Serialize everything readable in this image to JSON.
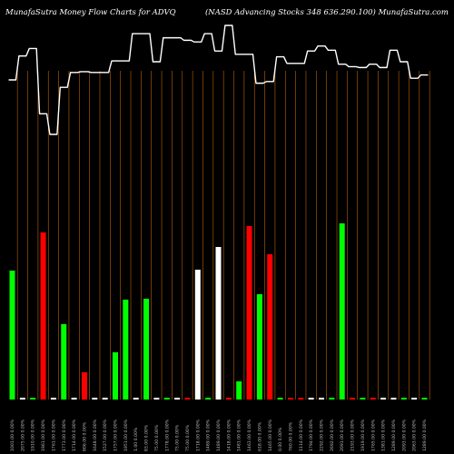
{
  "header": {
    "title_left": "MunafaSutra  Money Flow  Charts for ADVQ",
    "title_right": "(NASD Advancing Stocks 348   636.290.100)  MunafaSutra.com"
  },
  "colors": {
    "background": "#000000",
    "up": "#00ff00",
    "down": "#ff0000",
    "neutral": "#ffffff",
    "line": "#ffffff",
    "grid": "#c06000"
  },
  "chart_data": {
    "type": "bar",
    "categories": [
      "1001.00 0.00%",
      "2075.00 0.00%",
      "1910.00 0.00%",
      "1961.00 0.00%",
      "1761.00 0.00%",
      "1773.00 0.00%",
      "1714.00 0.00%",
      "806.00 0.00%",
      "1648.00 0.00%",
      "1527.00 0.00%",
      "1757.00 0.00%",
      "1951.00 0.00%",
      "1.00 0.00%",
      "83.00 0.00%",
      "75.00 0.00%",
      "1778.00 0.00%",
      "75.00 0.00%",
      "75.00 0.00%",
      "1718.00 0.00%",
      "1489.00 0.00%",
      "1489.00 0.00%",
      "1418.00 0.00%",
      "1481.00 0.00%",
      "1463.00 0.00%",
      "618.00 0.00%",
      "1465.00 0.00%",
      "0.00 0.00%",
      "760.00 0.00%",
      "1114.00 0.00%",
      "1794.00 0.00%",
      "2292.00 0.00%",
      "2692.00 0.00%",
      "2091.00 0.00%",
      "2193.00 0.00%",
      "1919.00 0.00%",
      "1765.00 0.00%",
      "1381.00 0.00%",
      "1289.00 0.00%",
      "2093.00 0.00%",
      "2063.00 0.00%",
      "1289.00 0.00%"
    ],
    "series": [
      {
        "values": [
          142,
          0,
          2,
          184,
          0,
          83,
          0,
          30,
          0,
          0,
          52,
          110,
          0,
          111,
          0,
          0,
          0,
          0,
          143,
          0,
          168,
          0,
          20,
          191,
          116,
          160,
          0,
          0,
          0,
          0,
          0,
          0,
          194,
          0,
          0,
          0,
          0,
          2,
          0,
          0,
          0
        ]
      }
    ],
    "bar_status": [
      "up",
      "neutral",
      "up",
      "down",
      "neutral",
      "up",
      "neutral",
      "down",
      "neutral",
      "neutral",
      "up",
      "up",
      "neutral",
      "up",
      "neutral",
      "up",
      "neutral",
      "down",
      "neutral",
      "up",
      "neutral",
      "down",
      "up",
      "down",
      "up",
      "down",
      "up",
      "down",
      "down",
      "neutral",
      "neutral",
      "up",
      "up",
      "down",
      "up",
      "down",
      "neutral",
      "neutral",
      "up",
      "neutral",
      "up"
    ],
    "price_line": [
      56,
      27,
      18,
      97,
      122,
      65,
      47,
      46,
      47,
      47,
      33,
      33,
      0,
      0,
      34,
      5,
      5,
      8,
      10,
      0,
      21,
      -10,
      25,
      25,
      60,
      58,
      28,
      36,
      36,
      21,
      15,
      20,
      37,
      40,
      41,
      37,
      41,
      20,
      34,
      54,
      50
    ],
    "grid": "vertical"
  }
}
